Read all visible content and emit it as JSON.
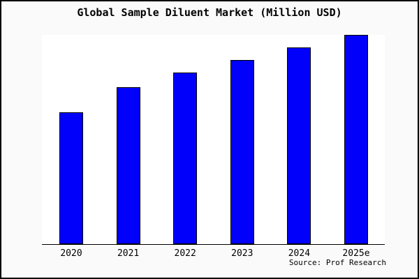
{
  "chart_title": "Global Sample Diluent Market (Million USD)",
  "source_credit": "Source: Prof Research",
  "colors": {
    "bar_fill": "#0000fb",
    "bar_outline": "#000000",
    "plot_background": "#ffffff",
    "canvas_background": "#fafafa",
    "frame_border": "#000000",
    "text": "#000000"
  },
  "chart_data": {
    "type": "bar",
    "title": "Global Sample Diluent Market (Million USD)",
    "categories": [
      "2020",
      "2021",
      "2022",
      "2023",
      "2024",
      "2025e"
    ],
    "values": [
      63,
      75,
      82,
      88,
      94,
      100
    ],
    "value_basis": "relative index estimated from bar heights; 2025e = 100 (no y-axis tick labels shown in chart)",
    "xlabel": "",
    "ylabel": "",
    "ylim": [
      0,
      100
    ],
    "y_axis_visible": false,
    "gridlines": false,
    "legend": false,
    "bar_color": "#0000fb",
    "annotation": "Source: Prof Research"
  }
}
